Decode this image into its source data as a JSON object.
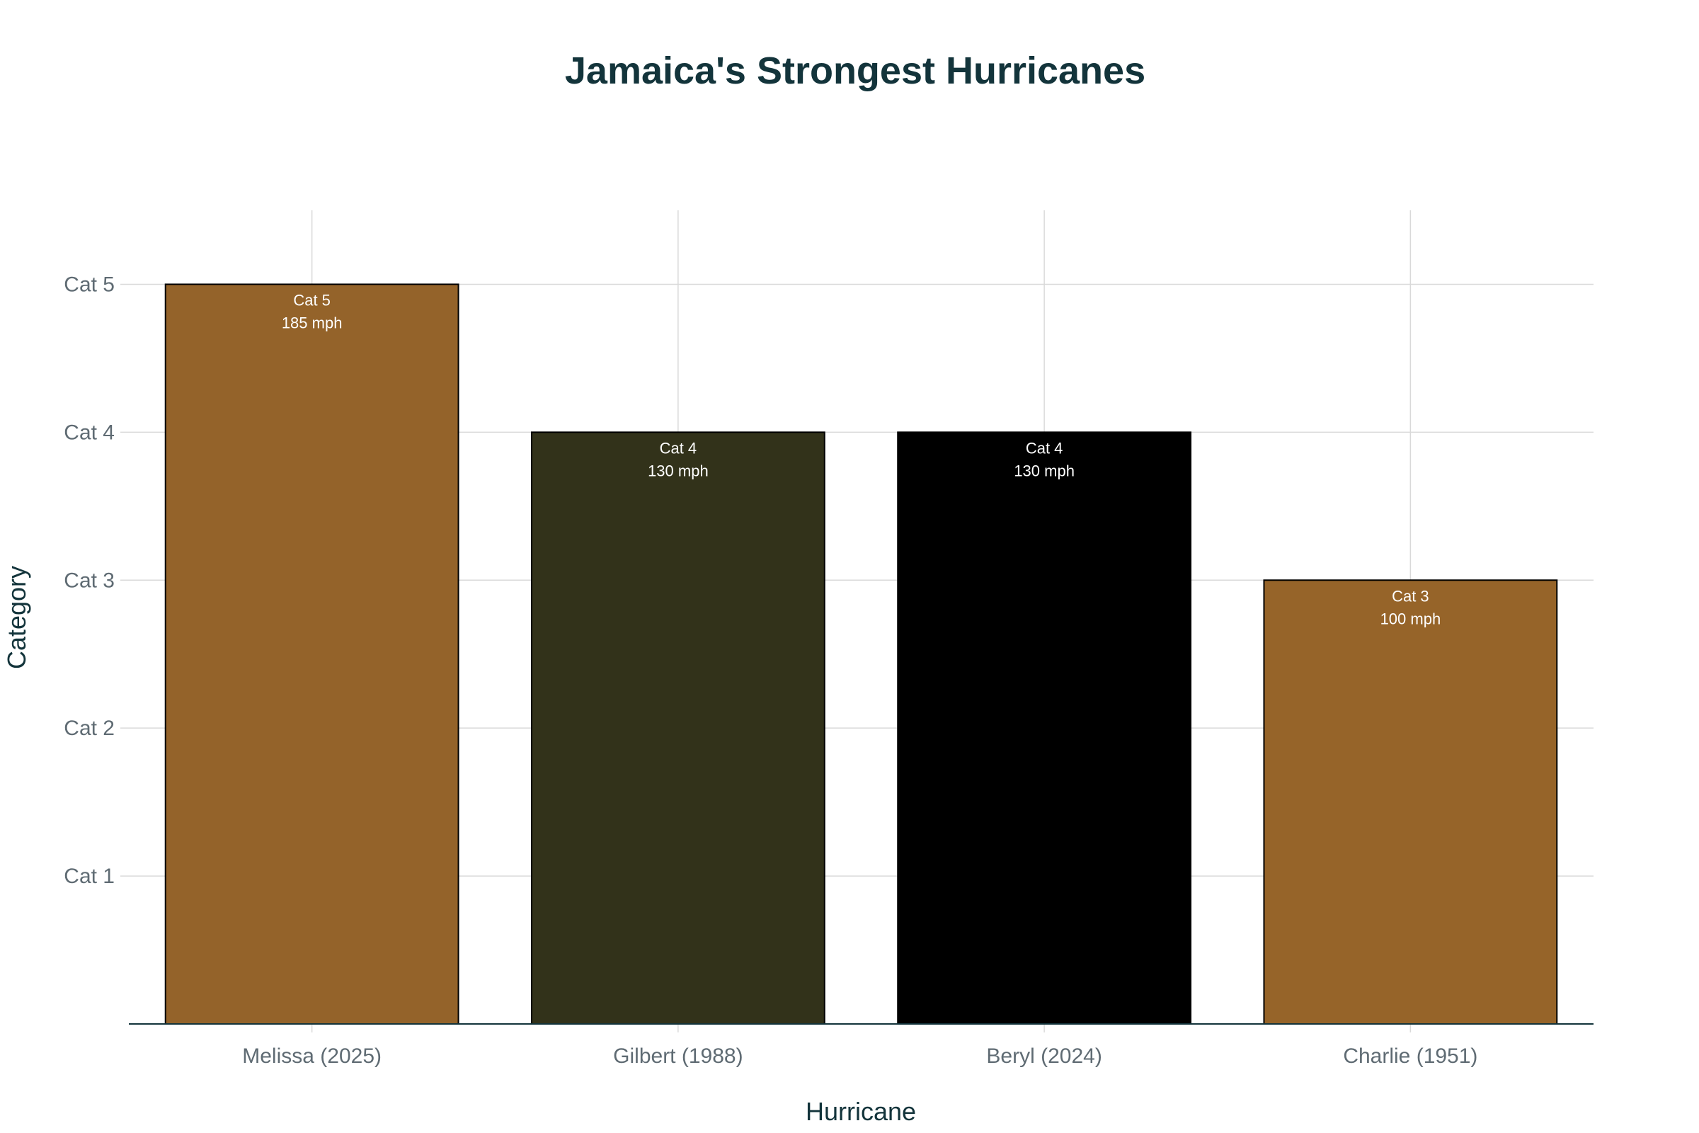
{
  "chart_data": {
    "type": "bar",
    "title": "Jamaica's Strongest Hurricanes",
    "xlabel": "Hurricane",
    "ylabel": "Category",
    "categories": [
      "Melissa (2025)",
      "Gilbert (1988)",
      "Beryl (2024)",
      "Charlie (1951)"
    ],
    "values": [
      5,
      4,
      4,
      3
    ],
    "bar_labels": [
      [
        "Cat 5",
        "185 mph"
      ],
      [
        "Cat 4",
        "130 mph"
      ],
      [
        "Cat 4",
        "130 mph"
      ],
      [
        "Cat 3",
        "100 mph"
      ]
    ],
    "colors": [
      "#94632a",
      "#32321a",
      "#000000",
      "#966429"
    ],
    "ylim": [
      0,
      5.5
    ],
    "yticks": [
      1,
      2,
      3,
      4,
      5
    ],
    "ytick_labels": [
      "Cat 1",
      "Cat 2",
      "Cat 3",
      "Cat 4",
      "Cat 5"
    ],
    "grid": true,
    "legend": "none"
  }
}
